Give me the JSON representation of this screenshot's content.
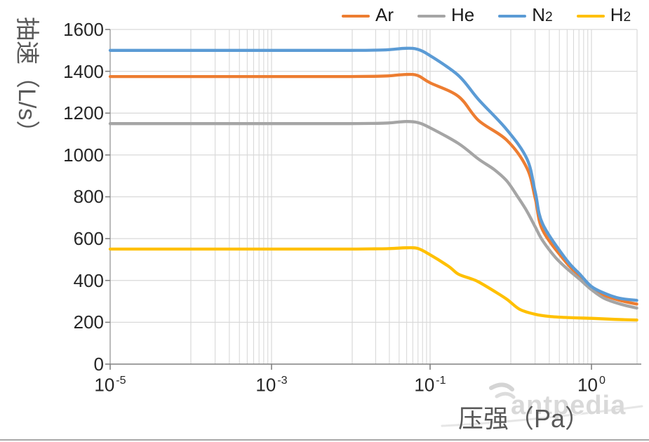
{
  "legend": {
    "items": [
      {
        "label": "Ar",
        "sub": "",
        "color": "#ED7D31"
      },
      {
        "label": "He",
        "sub": "",
        "color": "#A5A5A5"
      },
      {
        "label": "N",
        "sub": "2",
        "color": "#5B9BD5"
      },
      {
        "label": "H",
        "sub": "2",
        "color": "#FFC000"
      }
    ]
  },
  "axes": {
    "y": {
      "title": "抽速（L/s）",
      "ticks": [
        "1600",
        "1400",
        "1200",
        "1000",
        "800",
        "600",
        "400",
        "200",
        "0"
      ]
    },
    "x": {
      "title": "压强（Pa）",
      "ticks": [
        {
          "base": "10",
          "exp": "-5"
        },
        {
          "base": "10",
          "exp": "-3"
        },
        {
          "base": "10",
          "exp": "-1"
        },
        {
          "base": "10",
          "exp": "0"
        }
      ]
    }
  },
  "watermark": {
    "text": "antpedia"
  },
  "chart_data": {
    "type": "line",
    "x_scale": "log",
    "xlabel": "压强（Pa）",
    "ylabel": "抽速（L/s）",
    "xlim": [
      1e-05,
      1.92
    ],
    "ylim": [
      0,
      1600
    ],
    "y_tick_step": 200,
    "grid": true,
    "legend_position": "top",
    "series": [
      {
        "name": "Ar",
        "color": "#ED7D31",
        "points": [
          [
            1e-05,
            1375
          ],
          [
            0.0001,
            1375
          ],
          [
            0.001,
            1375
          ],
          [
            0.003,
            1375
          ],
          [
            0.01,
            1375
          ],
          [
            0.02,
            1376
          ],
          [
            0.03,
            1378
          ],
          [
            0.05,
            1385
          ],
          [
            0.07,
            1380
          ],
          [
            0.1,
            1345
          ],
          [
            0.15,
            1280
          ],
          [
            0.2,
            1165
          ],
          [
            0.3,
            1070
          ],
          [
            0.4,
            936
          ],
          [
            0.45,
            790
          ],
          [
            0.5,
            640
          ],
          [
            0.7,
            486
          ],
          [
            0.85,
            420
          ],
          [
            1.0,
            362
          ],
          [
            1.2,
            330
          ],
          [
            1.5,
            305
          ],
          [
            1.92,
            287
          ]
        ]
      },
      {
        "name": "He",
        "color": "#A5A5A5",
        "points": [
          [
            1e-05,
            1150
          ],
          [
            0.0001,
            1150
          ],
          [
            0.001,
            1150
          ],
          [
            0.003,
            1150
          ],
          [
            0.01,
            1150
          ],
          [
            0.02,
            1151
          ],
          [
            0.03,
            1153
          ],
          [
            0.05,
            1160
          ],
          [
            0.07,
            1155
          ],
          [
            0.1,
            1130
          ],
          [
            0.15,
            1055
          ],
          [
            0.2,
            980
          ],
          [
            0.25,
            930
          ],
          [
            0.3,
            875
          ],
          [
            0.35,
            800
          ],
          [
            0.4,
            730
          ],
          [
            0.45,
            655
          ],
          [
            0.5,
            590
          ],
          [
            0.6,
            510
          ],
          [
            0.7,
            460
          ],
          [
            0.85,
            405
          ],
          [
            1.0,
            357
          ],
          [
            1.2,
            315
          ],
          [
            1.5,
            288
          ],
          [
            1.92,
            268
          ]
        ]
      },
      {
        "name": "N2",
        "color": "#5B9BD5",
        "points": [
          [
            1e-05,
            1500
          ],
          [
            0.0001,
            1500
          ],
          [
            0.001,
            1500
          ],
          [
            0.003,
            1500
          ],
          [
            0.01,
            1500
          ],
          [
            0.02,
            1501
          ],
          [
            0.03,
            1503
          ],
          [
            0.05,
            1510
          ],
          [
            0.07,
            1505
          ],
          [
            0.1,
            1475
          ],
          [
            0.15,
            1380
          ],
          [
            0.2,
            1265
          ],
          [
            0.3,
            1120
          ],
          [
            0.4,
            980
          ],
          [
            0.45,
            820
          ],
          [
            0.5,
            670
          ],
          [
            0.7,
            500
          ],
          [
            0.85,
            430
          ],
          [
            1.0,
            372
          ],
          [
            1.2,
            340
          ],
          [
            1.5,
            315
          ],
          [
            1.92,
            305
          ]
        ]
      },
      {
        "name": "H2",
        "color": "#FFC000",
        "points": [
          [
            1e-05,
            550
          ],
          [
            0.0001,
            550
          ],
          [
            0.001,
            550
          ],
          [
            0.003,
            550
          ],
          [
            0.01,
            550
          ],
          [
            0.02,
            551
          ],
          [
            0.03,
            552
          ],
          [
            0.05,
            556
          ],
          [
            0.07,
            553
          ],
          [
            0.1,
            523
          ],
          [
            0.13,
            468
          ],
          [
            0.15,
            430
          ],
          [
            0.18,
            408
          ],
          [
            0.2,
            393
          ],
          [
            0.25,
            349
          ],
          [
            0.3,
            310
          ],
          [
            0.36,
            262
          ],
          [
            0.45,
            238
          ],
          [
            0.55,
            228
          ],
          [
            0.7,
            223
          ],
          [
            1.0,
            219
          ],
          [
            1.4,
            214
          ],
          [
            1.92,
            211
          ]
        ]
      }
    ]
  }
}
